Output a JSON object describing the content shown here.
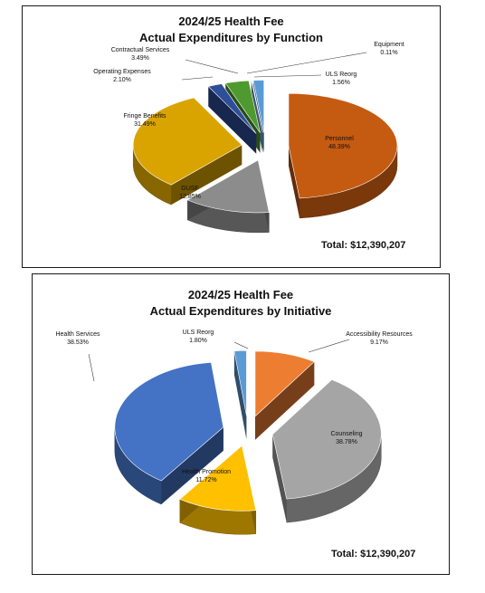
{
  "chart_data": [
    {
      "type": "pie",
      "title": "2024/25 Health Fee",
      "subtitle": "Actual Expenditures by Function",
      "total_label": "Total:  $12,390,207",
      "slices": [
        {
          "name": "Personnel",
          "value": 48.39,
          "label": "48.39%",
          "color": "#c55a11"
        },
        {
          "name": "GUSF",
          "value": 12.85,
          "label": "12.85%",
          "color": "#8c8c8c"
        },
        {
          "name": "Fringe Benefits",
          "value": 31.49,
          "label": "31.49%",
          "color": "#d9a400"
        },
        {
          "name": "Operating Expenses",
          "value": 2.1,
          "label": "2.10%",
          "color": "#2e4e9a"
        },
        {
          "name": "Contractual Services",
          "value": 3.49,
          "label": "3.49%",
          "color": "#4f9a2f"
        },
        {
          "name": "Equipment",
          "value": 0.11,
          "label": "0.11%",
          "color": "#7aa7d6"
        },
        {
          "name": "ULS Reorg",
          "value": 1.56,
          "label": "1.56%",
          "color": "#5b9bd5"
        }
      ]
    },
    {
      "type": "pie",
      "title": "2024/25 Health Fee",
      "subtitle": "Actual Expenditures by Initiative",
      "total_label": "Total:  $12,390,207",
      "slices": [
        {
          "name": "Accessibility Resources",
          "value": 9.17,
          "label": "9.17%",
          "color": "#ed7d31"
        },
        {
          "name": "Counseling",
          "value": 38.78,
          "label": "38.78%",
          "color": "#a5a5a5"
        },
        {
          "name": "Health Promotion",
          "value": 11.72,
          "label": "11.72%",
          "color": "#ffc000"
        },
        {
          "name": "Health Services",
          "value": 38.53,
          "label": "38.53%",
          "color": "#4472c4"
        },
        {
          "name": "ULS Reorg",
          "value": 1.8,
          "label": "1.80%",
          "color": "#5b9bd5"
        }
      ]
    }
  ]
}
